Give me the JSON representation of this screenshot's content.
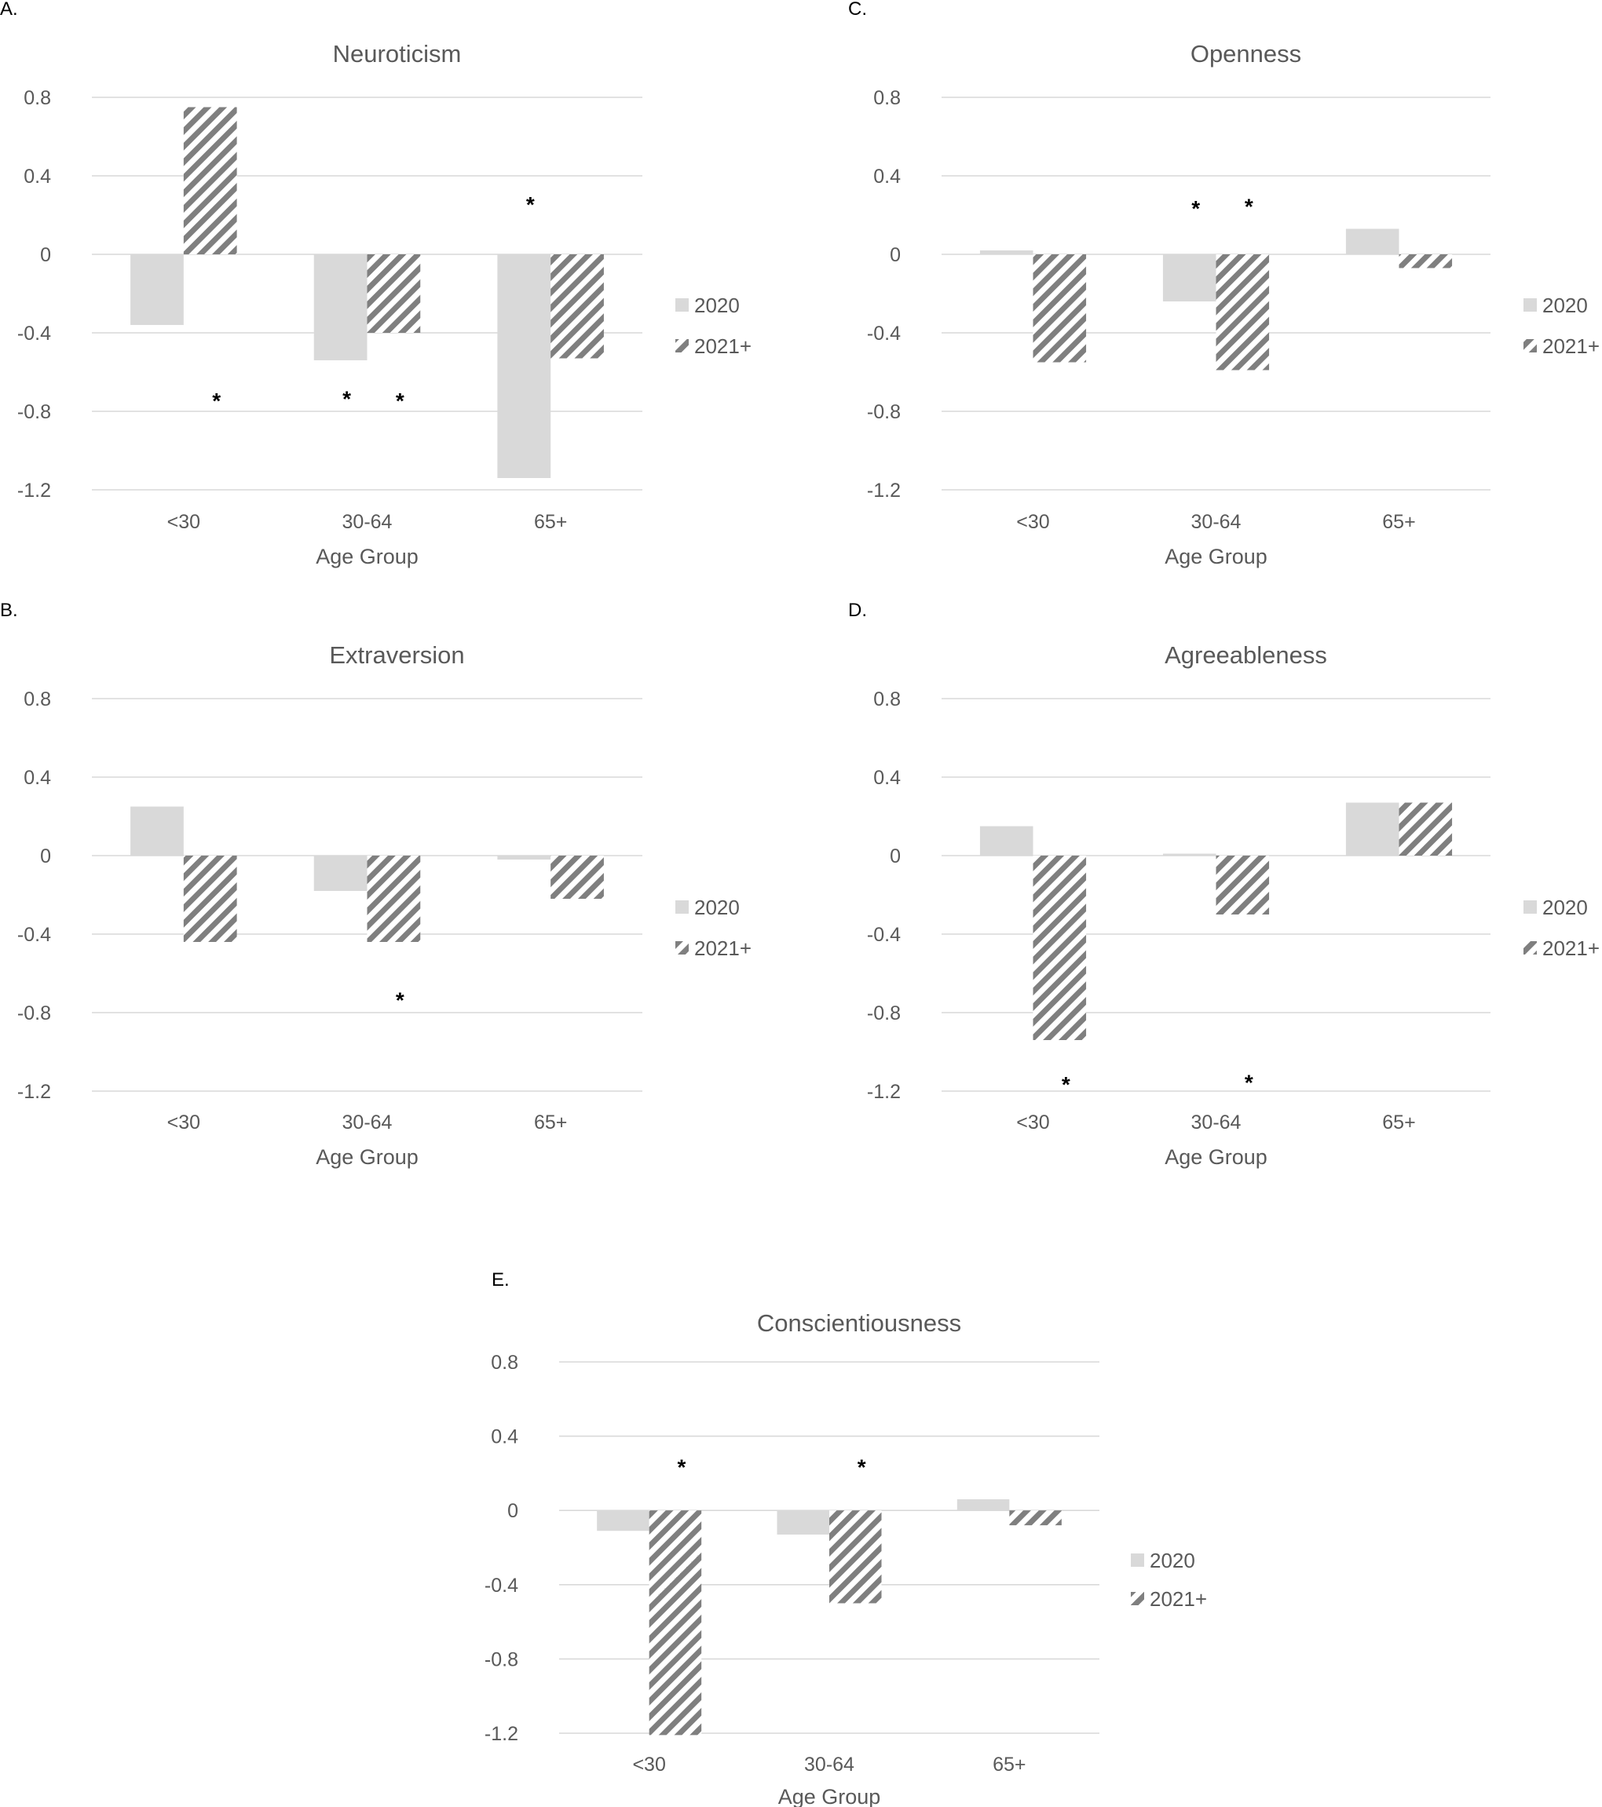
{
  "colors": {
    "series_2020": "#d9d9d9",
    "series_2021": "#7f7f7f",
    "grid": "#d9d9d9",
    "text": "#595959"
  },
  "chart_data": [
    {
      "panel": "A.",
      "type": "bar",
      "title": "Neuroticism",
      "xlabel": "Age Group",
      "ylabel": "",
      "ylim": [
        -1.2,
        0.8
      ],
      "yticks": [
        "0.8",
        "0.4",
        "0",
        "-0.4",
        "-0.8",
        "-1.2"
      ],
      "categories": [
        "<30",
        "30-64",
        "65+"
      ],
      "legend": "right",
      "grid": true,
      "series": [
        {
          "name": "2020",
          "pattern": "solid",
          "values": [
            -0.36,
            -0.54,
            -1.14
          ]
        },
        {
          "name": "2021+",
          "pattern": "hatched",
          "values": [
            0.75,
            -0.4,
            -0.53
          ]
        }
      ],
      "annotations": [
        {
          "text": "*",
          "category": 0,
          "series": 1,
          "y": -0.72
        },
        {
          "text": "*",
          "category": 1,
          "series": 0,
          "y": -0.71
        },
        {
          "text": "*",
          "category": 1,
          "series": 1,
          "y": -0.72
        },
        {
          "text": "*",
          "category": 2,
          "series": 0,
          "y": 0.28
        }
      ]
    },
    {
      "panel": "C.",
      "type": "bar",
      "title": "Openness",
      "xlabel": "Age Group",
      "ylabel": "",
      "ylim": [
        -1.2,
        0.8
      ],
      "yticks": [
        "0.8",
        "0.4",
        "0",
        "-0.4",
        "-0.8",
        "-1.2"
      ],
      "categories": [
        "<30",
        "30-64",
        "65+"
      ],
      "legend": "right",
      "grid": true,
      "series": [
        {
          "name": "2020",
          "pattern": "solid",
          "values": [
            0.02,
            -0.24,
            0.13
          ]
        },
        {
          "name": "2021+",
          "pattern": "hatched",
          "values": [
            -0.55,
            -0.59,
            -0.07
          ]
        }
      ],
      "annotations": [
        {
          "text": "*",
          "category": 1,
          "series": 0,
          "y": 0.26
        },
        {
          "text": "*",
          "category": 1,
          "series": 1,
          "y": 0.27
        }
      ]
    },
    {
      "panel": "B.",
      "type": "bar",
      "title": "Extraversion",
      "xlabel": "Age Group",
      "ylabel": "",
      "ylim": [
        -1.2,
        0.8
      ],
      "yticks": [
        "0.8",
        "0.4",
        "0",
        "-0.4",
        "-0.8",
        "-1.2"
      ],
      "categories": [
        "<30",
        "30-64",
        "65+"
      ],
      "legend": "right",
      "grid": true,
      "series": [
        {
          "name": "2020",
          "pattern": "solid",
          "values": [
            0.25,
            -0.18,
            -0.02
          ]
        },
        {
          "name": "2021+",
          "pattern": "hatched",
          "values": [
            -0.44,
            -0.44,
            -0.22
          ]
        }
      ],
      "annotations": [
        {
          "text": "*",
          "category": 1,
          "series": 1,
          "y": -0.71
        }
      ]
    },
    {
      "panel": "D.",
      "type": "bar",
      "title": "Agreeableness",
      "xlabel": "Age Group",
      "ylabel": "",
      "ylim": [
        -1.2,
        0.8
      ],
      "yticks": [
        "0.8",
        "0.4",
        "0",
        "-0.4",
        "-0.8",
        "-1.2"
      ],
      "categories": [
        "<30",
        "30-64",
        "65+"
      ],
      "legend": "right",
      "grid": true,
      "series": [
        {
          "name": "2020",
          "pattern": "solid",
          "values": [
            0.15,
            0.01,
            0.27
          ]
        },
        {
          "name": "2021+",
          "pattern": "hatched",
          "values": [
            -0.94,
            -0.3,
            0.27
          ]
        }
      ],
      "annotations": [
        {
          "text": "*",
          "category": 0,
          "series": 1,
          "y": -1.14
        },
        {
          "text": "*",
          "category": 1,
          "series": 1,
          "y": -1.13
        }
      ]
    },
    {
      "panel": "E.",
      "type": "bar",
      "title": "Conscientiousness",
      "xlabel": "Age Group",
      "ylabel": "",
      "ylim": [
        -1.2,
        0.8
      ],
      "yticks": [
        "0.8",
        "0.4",
        "0",
        "-0.4",
        "-0.8",
        "-1.2"
      ],
      "categories": [
        "<30",
        "30-64",
        "65+"
      ],
      "legend": "right",
      "grid": true,
      "series": [
        {
          "name": "2020",
          "pattern": "solid",
          "values": [
            -0.11,
            -0.13,
            0.06
          ]
        },
        {
          "name": "2021+",
          "pattern": "hatched",
          "values": [
            -1.21,
            -0.5,
            -0.08
          ]
        }
      ],
      "annotations": [
        {
          "text": "*",
          "category": 0,
          "series": 1,
          "y": 0.26
        },
        {
          "text": "*",
          "category": 1,
          "series": 1,
          "y": 0.26
        }
      ]
    }
  ]
}
